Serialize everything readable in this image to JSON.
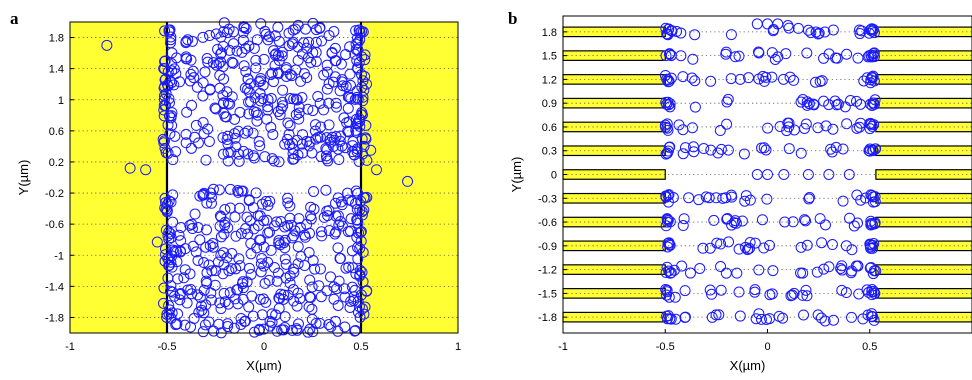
{
  "chart_data": [
    {
      "panel_label": "a",
      "type": "scatter",
      "xlabel": "X(µm)",
      "ylabel": "Y(µm)",
      "xlim": [
        -1,
        1
      ],
      "ylim": [
        -2,
        2
      ],
      "xticks": [
        "-1",
        "-0.5",
        "0",
        "0.5",
        "1"
      ],
      "yticks": [
        "1.8",
        "1.4",
        "1",
        "0.6",
        "0.2",
        "-0.2",
        "-0.6",
        "-1",
        "-1.4",
        "-1.8"
      ],
      "grid": "horizontal dotted",
      "regions": [
        {
          "x": [
            -1,
            -0.5
          ],
          "y": [
            -2,
            2
          ],
          "color": "#ffff33"
        },
        {
          "x": [
            0.5,
            1
          ],
          "y": [
            -2,
            2
          ],
          "color": "#ffff33"
        }
      ],
      "marker_color": "#1a1aff",
      "series": [
        {
          "bands": [
            {
              "y": [
                0.2,
                2.0
              ],
              "x": [
                -0.49,
                0.49
              ],
              "count": 330
            },
            {
              "y": [
                -2.0,
                -0.15
              ],
              "x": [
                -0.49,
                0.49
              ],
              "count": 330
            },
            {
              "y": [
                0.3,
                1.9
              ],
              "x": [
                -0.52,
                -0.47
              ],
              "count": 40
            },
            {
              "y": [
                -1.9,
                -0.2
              ],
              "x": [
                -0.52,
                -0.47
              ],
              "count": 35
            },
            {
              "y": [
                0.3,
                1.9
              ],
              "x": [
                0.47,
                0.53
              ],
              "count": 40
            },
            {
              "y": [
                -1.9,
                -0.2
              ],
              "x": [
                0.47,
                0.53
              ],
              "count": 35
            }
          ],
          "points": [
            [
              -0.81,
              1.7
            ],
            [
              -0.69,
              0.12
            ],
            [
              -0.61,
              0.1
            ],
            [
              -0.55,
              -0.83
            ],
            [
              0.58,
              0.1
            ],
            [
              0.74,
              -0.05
            ],
            [
              0.55,
              0.35
            ],
            [
              0.53,
              0.22
            ]
          ]
        }
      ]
    },
    {
      "panel_label": "b",
      "type": "scatter",
      "xlabel": "X(µm)",
      "ylabel": "Y(µm)",
      "xlim": [
        -1,
        1
      ],
      "ylim": [
        -2,
        2
      ],
      "xticks": [
        "-1",
        "-0.5",
        "0",
        "0.5"
      ],
      "yticks": [
        "1.8",
        "1.5",
        "1.2",
        "0.9",
        "0.6",
        "0.3",
        "0",
        "-0.3",
        "-0.6",
        "-0.9",
        "-1.2",
        "-1.5",
        "-1.8"
      ],
      "grid": "horizontal dotted",
      "strip_rows": [
        1.8,
        1.5,
        1.2,
        0.9,
        0.6,
        0.3,
        0,
        -0.3,
        -0.6,
        -0.9,
        -1.2,
        -1.5,
        -1.8
      ],
      "strip_halfheight": 0.06,
      "regions": [
        {
          "x": [
            -1,
            -0.5
          ],
          "color": "#ffff33"
        },
        {
          "x": [
            0.53,
            1
          ],
          "color": "#ffff33"
        }
      ],
      "marker_color": "#1a1aff",
      "series": [
        {
          "row_points": 22,
          "edge_points": 5,
          "x_range": [
            -0.5,
            0.53
          ],
          "center_row_points": [
            [
              0,
              0
            ],
            [
              0.08,
              0
            ],
            [
              0.2,
              0
            ],
            [
              0.3,
              0
            ],
            [
              0.4,
              0
            ],
            [
              -0.05,
              0
            ]
          ],
          "top_extra": [
            [
              -0.05,
              1.9
            ],
            [
              0.0,
              1.9
            ],
            [
              0.05,
              1.9
            ],
            [
              0.1,
              1.88
            ],
            [
              0.2,
              1.82
            ]
          ]
        }
      ]
    }
  ]
}
